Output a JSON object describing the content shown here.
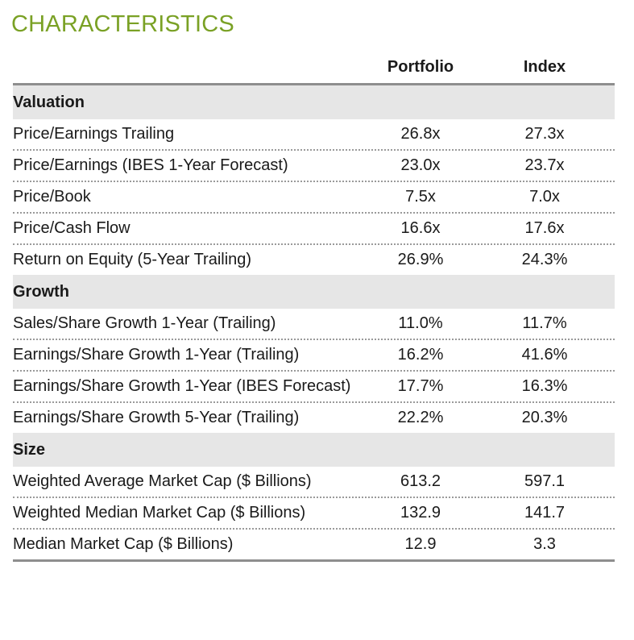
{
  "title": "CHARACTERISTICS",
  "columns": {
    "portfolio": "Portfolio",
    "index": "Index"
  },
  "sections": [
    {
      "name": "Valuation",
      "rows": [
        {
          "label": "Price/Earnings Trailing",
          "portfolio": "26.8x",
          "index": "27.3x"
        },
        {
          "label": "Price/Earnings (IBES 1-Year Forecast)",
          "portfolio": "23.0x",
          "index": "23.7x"
        },
        {
          "label": "Price/Book",
          "portfolio": "7.5x",
          "index": "7.0x"
        },
        {
          "label": "Price/Cash Flow",
          "portfolio": "16.6x",
          "index": "17.6x"
        },
        {
          "label": "Return on Equity (5-Year Trailing)",
          "portfolio": "26.9%",
          "index": "24.3%"
        }
      ]
    },
    {
      "name": "Growth",
      "rows": [
        {
          "label": "Sales/Share Growth 1-Year (Trailing)",
          "portfolio": "11.0%",
          "index": "11.7%"
        },
        {
          "label": "Earnings/Share Growth 1-Year (Trailing)",
          "portfolio": "16.2%",
          "index": "41.6%"
        },
        {
          "label": "Earnings/Share Growth 1-Year (IBES Forecast)",
          "portfolio": "17.7%",
          "index": "16.3%"
        },
        {
          "label": "Earnings/Share Growth 5-Year (Trailing)",
          "portfolio": "22.2%",
          "index": "20.3%"
        }
      ]
    },
    {
      "name": "Size",
      "rows": [
        {
          "label": "Weighted Average Market Cap ($ Billions)",
          "portfolio": "613.2",
          "index": "597.1"
        },
        {
          "label": "Weighted Median Market Cap ($ Billions)",
          "portfolio": "132.9",
          "index": "141.7"
        },
        {
          "label": "Median Market Cap ($ Billions)",
          "portfolio": "12.9",
          "index": "3.3"
        }
      ]
    }
  ]
}
